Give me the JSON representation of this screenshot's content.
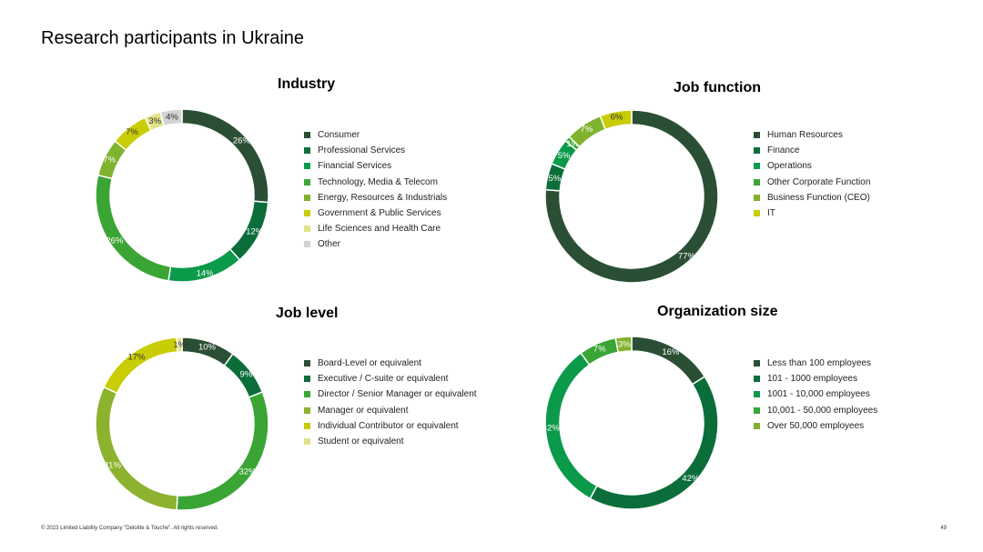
{
  "page": {
    "title": "Research participants in Ukraine",
    "footer": "© 2023  Limited Liability Company \"Deloitte & Touche\".  All rights reserved.",
    "page_number": "49"
  },
  "chart_data": [
    {
      "type": "pie",
      "title": "Industry",
      "categories": [
        "Consumer",
        "Professional Services",
        "Financial Services",
        "Technology, Media & Telecom",
        "Energy, Resources & Industrials",
        "Government & Public Services",
        "Life Sciences and Health Care",
        "Other"
      ],
      "values": [
        26,
        12,
        14,
        26,
        7,
        7,
        3,
        4
      ],
      "labels": [
        "26%",
        "12%",
        "14%",
        "26%",
        "7%",
        "7%",
        "3%",
        "4%"
      ],
      "colors": [
        "#2b4f34",
        "#0b6e3a",
        "#0b9a4a",
        "#3aa535",
        "#7fb32e",
        "#c9cd05",
        "#e3e38a",
        "#d3d3d3"
      ],
      "legend": "right"
    },
    {
      "type": "pie",
      "title": "Job function",
      "categories": [
        "Human Resources",
        "Finance",
        "Operations",
        "Other Corporate Function",
        "Business Function (CEO)",
        "IT"
      ],
      "values": [
        77,
        5,
        5,
        1,
        7,
        6
      ],
      "labels": [
        "77%",
        "5%",
        "5%",
        "1%",
        "7%",
        "6%"
      ],
      "colors": [
        "#2b4f34",
        "#0b6e3a",
        "#0b9a4a",
        "#3aa535",
        "#7fb32e",
        "#c9cd05"
      ],
      "legend": "right"
    },
    {
      "type": "pie",
      "title": "Job level",
      "categories": [
        "Board-Level or equivalent",
        "Executive / C-suite or equivalent",
        "Director / Senior Manager or equivalent",
        "Manager or equivalent",
        "Individual Contributor or equivalent",
        "Student or equivalent"
      ],
      "values": [
        10,
        9,
        32,
        31,
        17,
        1
      ],
      "labels": [
        "10%",
        "9%",
        "32%",
        "31%",
        "17%",
        "1%"
      ],
      "colors": [
        "#2b4f34",
        "#0b6e3a",
        "#3aa535",
        "#8cb22e",
        "#c9cd05",
        "#e3e38a"
      ],
      "legend": "right"
    },
    {
      "type": "pie",
      "title": "Organization size",
      "categories": [
        "Less than 100 employees",
        "101 - 1000 employees",
        "1001 - 10,000 employees",
        "10,001 - 50,000 employees",
        "Over 50,000 employees"
      ],
      "values": [
        16,
        42,
        32,
        7,
        3
      ],
      "labels": [
        "16%",
        "42%",
        "32%",
        "7%",
        "3%"
      ],
      "colors": [
        "#2b4f34",
        "#0b6e3a",
        "#0b9a4a",
        "#3aa535",
        "#7fb32e"
      ],
      "legend": "right"
    }
  ]
}
